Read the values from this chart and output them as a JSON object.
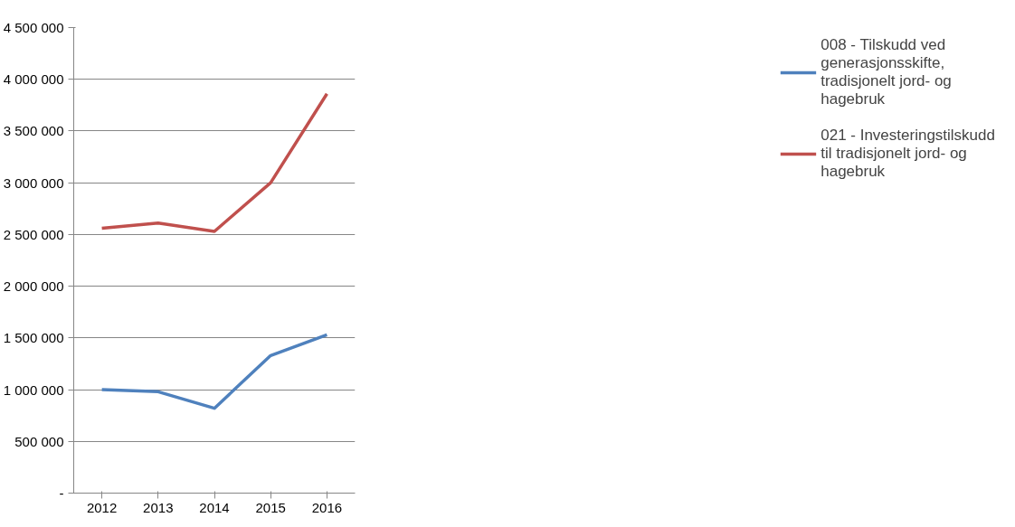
{
  "chart_data": {
    "type": "line",
    "categories": [
      "2012",
      "2013",
      "2014",
      "2015",
      "2016"
    ],
    "series": [
      {
        "name": "008 - Tilskudd ved generasjonsskifte, tradisjonelt jord- og hagebruk",
        "color": "#4f81bd",
        "values": [
          1000000,
          980000,
          820000,
          1330000,
          1530000
        ]
      },
      {
        "name": "021 - Investeringstilskudd til tradisjonelt jord- og hagebruk",
        "color": "#c0504d",
        "values": [
          2560000,
          2610000,
          2530000,
          3000000,
          3860000
        ]
      }
    ],
    "ylim": [
      0,
      4500000
    ],
    "yticks": [
      {
        "value": 0,
        "label": "-"
      },
      {
        "value": 500000,
        "label": "500 000"
      },
      {
        "value": 1000000,
        "label": "1 000 000"
      },
      {
        "value": 1500000,
        "label": "1 500 000"
      },
      {
        "value": 2000000,
        "label": "2 000 000"
      },
      {
        "value": 2500000,
        "label": "2 500 000"
      },
      {
        "value": 3000000,
        "label": "3 000 000"
      },
      {
        "value": 3500000,
        "label": "3 500 000"
      },
      {
        "value": 4000000,
        "label": "4 000 000"
      },
      {
        "value": 4500000,
        "label": "4 500 000"
      }
    ],
    "grid": "y",
    "legend": "right",
    "marker": "none",
    "line_style": "solid"
  }
}
